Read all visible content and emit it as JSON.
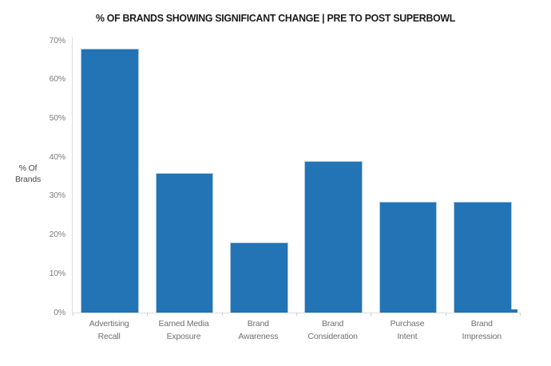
{
  "title": "% OF BRANDS SHOWING SIGNIFICANT CHANGE | PRE TO POST SUPERBOWL",
  "y_axis_title": {
    "line1": "% Of",
    "line2": "Brands"
  },
  "chart_data": {
    "type": "bar",
    "title": "% OF BRANDS SHOWING SIGNIFICANT CHANGE | PRE TO POST SUPERBOWL",
    "categories": [
      "Advertising Recall",
      "Earned Media Exposure",
      "Brand Awareness",
      "Brand Consideration",
      "Purchase Intent",
      "Brand Impression"
    ],
    "category_lines": [
      [
        "Advertising",
        "Recall"
      ],
      [
        "Earned Media",
        "Exposure"
      ],
      [
        "Brand",
        "Awareness"
      ],
      [
        "Brand",
        "Consideration"
      ],
      [
        "Purchase",
        "Intent"
      ],
      [
        "Brand",
        "Impression"
      ]
    ],
    "values": [
      68,
      36,
      18,
      39,
      28.5,
      28.5
    ],
    "xlabel": "",
    "ylabel": "% Of Brands",
    "ylim": [
      0,
      70
    ],
    "ytick_step": 10,
    "ytick_labels": [
      "0%",
      "10%",
      "20%",
      "30%",
      "40%",
      "50%",
      "60%",
      "70%"
    ],
    "grid": false,
    "legend": false,
    "annotations": [
      {
        "type": "baseline-sliver",
        "description": "tiny blue sliver at the baseline just right of the last bar",
        "approx_value_pct": 0.8
      }
    ]
  },
  "colors": {
    "bar": "#2274B5",
    "bar_edge": "#AECBE3",
    "axis_line": "#DEDEDE",
    "ytick_label": "#7C7C7C",
    "category_label": "#6F6F6F",
    "y_axis_title": "#4A4A4A",
    "title": "#1B1B1B",
    "background": "#FFFFFF"
  }
}
